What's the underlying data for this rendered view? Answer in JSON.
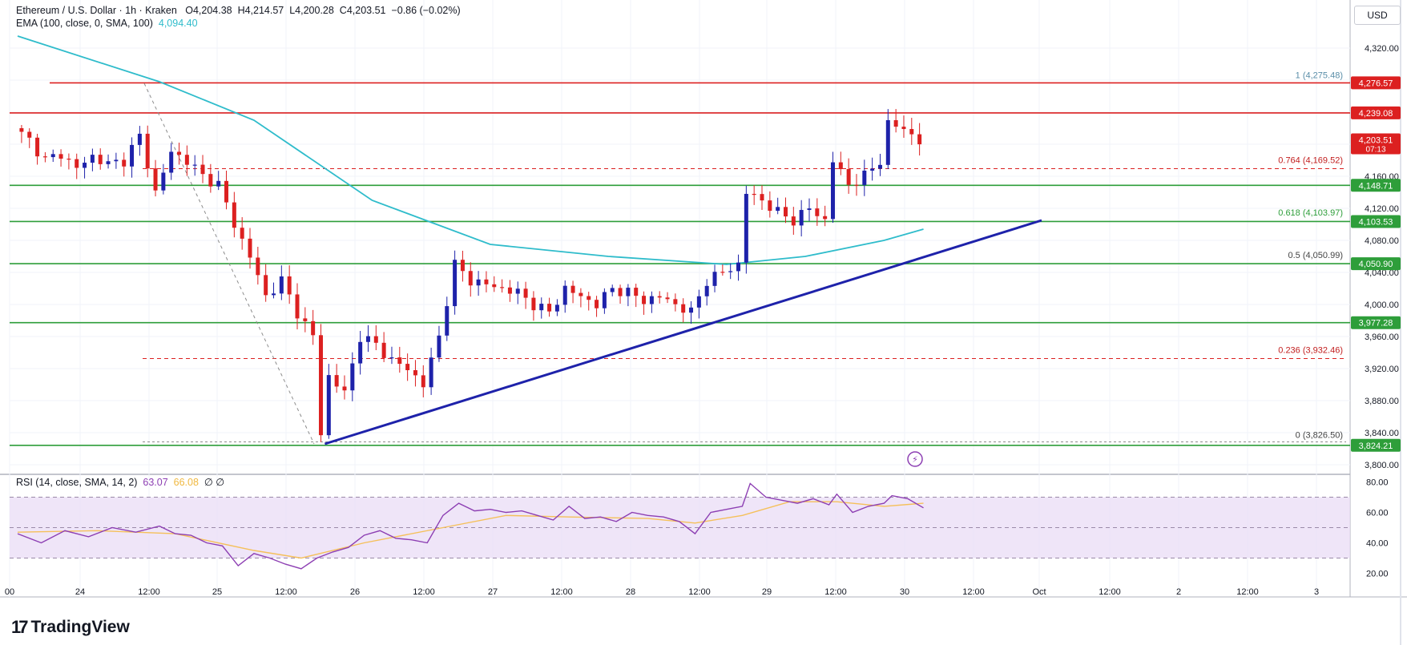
{
  "header": {
    "symbol": "Ethereum / U.S. Dollar · 1h · Kraken",
    "open_label": "O",
    "open": "4,204.38",
    "high_label": "H",
    "high": "4,214.57",
    "low_label": "L",
    "low": "4,200.28",
    "close_label": "C",
    "close": "4,203.51",
    "change": "−0.86 (−0.02%)",
    "ema_label": "EMA (100, close, 0, SMA, 100)",
    "ema_value": "4,094.40"
  },
  "currency_button": "USD",
  "brand": "TradingView",
  "colors": {
    "bull": "#1e22aa",
    "bear": "#dc2020",
    "ema": "#2fbccb",
    "support": "#2e9e3a",
    "resistance": "#dc2020",
    "trendline": "#1e22aa",
    "rsi": "#8d3fb3",
    "rsi_ma": "#f5c05a",
    "rsi_band": "#e9dcf6",
    "fib": "#5a8ea8"
  },
  "chart_data": [
    {
      "type": "candlestick",
      "price_axis": {
        "ylim": [
          3790,
          4350
        ],
        "ticks": [
          "4,320.00",
          "4,280.00",
          "4,240.00",
          "4,200.00",
          "4,160.00",
          "4,120.00",
          "4,080.00",
          "4,040.00",
          "4,000.00",
          "3,960.00",
          "3,920.00",
          "3,880.00",
          "3,840.00",
          "3,800.00"
        ]
      },
      "time_axis": {
        "labels": [
          "00",
          "24",
          "12:00",
          "25",
          "12:00",
          "26",
          "12:00",
          "27",
          "12:00",
          "28",
          "12:00",
          "29",
          "12:00",
          "30",
          "12:00",
          "Oct",
          "12:00",
          "2",
          "12:00",
          "3"
        ]
      },
      "ohlc_path": [
        [
          0,
          4220
        ],
        [
          2,
          4205
        ],
        [
          4,
          4180
        ],
        [
          6,
          4188
        ],
        [
          8,
          4170
        ],
        [
          10,
          4185
        ],
        [
          12,
          4175
        ],
        [
          14,
          4180
        ],
        [
          16,
          4210
        ],
        [
          18,
          4140
        ],
        [
          20,
          4190
        ],
        [
          22,
          4180
        ],
        [
          24,
          4160
        ],
        [
          26,
          4150
        ],
        [
          28,
          4100
        ],
        [
          30,
          4060
        ],
        [
          32,
          4010
        ],
        [
          34,
          4030
        ],
        [
          36,
          3990
        ],
        [
          38,
          3960
        ],
        [
          39,
          3840
        ],
        [
          40,
          3910
        ],
        [
          42,
          3890
        ],
        [
          44,
          3960
        ],
        [
          46,
          3950
        ],
        [
          48,
          3930
        ],
        [
          50,
          3920
        ],
        [
          52,
          3900
        ],
        [
          54,
          3960
        ],
        [
          56,
          4050
        ],
        [
          58,
          4030
        ],
        [
          60,
          4025
        ],
        [
          62,
          4020
        ],
        [
          64,
          4015
        ],
        [
          66,
          4000
        ],
        [
          68,
          3990
        ],
        [
          70,
          4020
        ],
        [
          72,
          4010
        ],
        [
          74,
          4000
        ],
        [
          76,
          4020
        ],
        [
          78,
          4015
        ],
        [
          80,
          4005
        ],
        [
          82,
          4010
        ],
        [
          84,
          4000
        ],
        [
          86,
          3990
        ],
        [
          88,
          4030
        ],
        [
          90,
          4040
        ],
        [
          92,
          4050
        ],
        [
          93,
          4140
        ],
        [
          95,
          4130
        ],
        [
          97,
          4115
        ],
        [
          99,
          4105
        ],
        [
          101,
          4120
        ],
        [
          103,
          4105
        ],
        [
          104,
          4180
        ],
        [
          106,
          4150
        ],
        [
          108,
          4160
        ],
        [
          110,
          4180
        ],
        [
          111,
          4225
        ],
        [
          113,
          4220
        ],
        [
          115,
          4203
        ]
      ],
      "ema100": [
        [
          0,
          4335
        ],
        [
          18,
          4278
        ],
        [
          30,
          4230
        ],
        [
          45,
          4130
        ],
        [
          60,
          4075
        ],
        [
          75,
          4060
        ],
        [
          90,
          4050
        ],
        [
          100,
          4060
        ],
        [
          110,
          4080
        ],
        [
          115,
          4094
        ]
      ],
      "current_price": "4,203.51",
      "countdown": "07:13",
      "horizontal_levels": [
        {
          "price": 4276.57,
          "label": "4,276.57",
          "kind": "resistance"
        },
        {
          "price": 4239.08,
          "label": "4,239.08",
          "kind": "resistance"
        },
        {
          "price": 4148.71,
          "label": "4,148.71",
          "kind": "support"
        },
        {
          "price": 4103.53,
          "label": "4,103.53",
          "kind": "support"
        },
        {
          "price": 4050.9,
          "label": "4,050.90",
          "kind": "support"
        },
        {
          "price": 3977.28,
          "label": "3,977.28",
          "kind": "support"
        },
        {
          "price": 3824.21,
          "label": "3,824.21",
          "kind": "support"
        }
      ],
      "fibonacci": [
        {
          "level": "1",
          "price": 4275.48,
          "label": "1 (4,275.48)"
        },
        {
          "level": "0.764",
          "price": 4169.52,
          "label": "0.764 (4,169.52)"
        },
        {
          "level": "0.618",
          "price": 4103.97,
          "label": "0.618 (4,103.97)"
        },
        {
          "level": "0.5",
          "price": 4050.99,
          "label": "0.5 (4,050.99)"
        },
        {
          "level": "0.236",
          "price": 3932.46,
          "label": "0.236 (3,932.46)"
        },
        {
          "level": "0",
          "price": 3826.5,
          "label": "0 (3,826.50)"
        }
      ],
      "trendline": {
        "from": [
          39,
          3826
        ],
        "to": [
          130,
          4105
        ]
      }
    },
    {
      "type": "line",
      "title": "RSI (14, close, SMA, 14, 2)",
      "rsi_value": "63.07",
      "rsi_ma_value": "66.08",
      "empty_values": "∅ ∅",
      "ylim": [
        15,
        85
      ],
      "ticks": [
        "80.00",
        "60.00",
        "40.00",
        "20.00"
      ],
      "band": [
        30,
        70
      ],
      "rsi": [
        [
          0,
          46
        ],
        [
          3,
          40
        ],
        [
          6,
          48
        ],
        [
          9,
          44
        ],
        [
          12,
          50
        ],
        [
          15,
          47
        ],
        [
          18,
          51
        ],
        [
          20,
          46
        ],
        [
          22,
          45
        ],
        [
          24,
          40
        ],
        [
          26,
          38
        ],
        [
          28,
          25
        ],
        [
          30,
          33
        ],
        [
          32,
          30
        ],
        [
          34,
          26
        ],
        [
          36,
          23
        ],
        [
          38,
          30
        ],
        [
          40,
          34
        ],
        [
          42,
          37
        ],
        [
          44,
          45
        ],
        [
          46,
          48
        ],
        [
          48,
          43
        ],
        [
          50,
          42
        ],
        [
          52,
          40
        ],
        [
          54,
          58
        ],
        [
          56,
          66
        ],
        [
          58,
          61
        ],
        [
          60,
          62
        ],
        [
          62,
          60
        ],
        [
          64,
          61
        ],
        [
          66,
          58
        ],
        [
          68,
          55
        ],
        [
          70,
          64
        ],
        [
          72,
          56
        ],
        [
          74,
          57
        ],
        [
          76,
          54
        ],
        [
          78,
          60
        ],
        [
          80,
          58
        ],
        [
          82,
          57
        ],
        [
          84,
          54
        ],
        [
          86,
          46
        ],
        [
          88,
          60
        ],
        [
          90,
          62
        ],
        [
          92,
          64
        ],
        [
          93,
          79
        ],
        [
          95,
          70
        ],
        [
          97,
          68
        ],
        [
          99,
          66
        ],
        [
          101,
          69
        ],
        [
          103,
          65
        ],
        [
          104,
          72
        ],
        [
          106,
          60
        ],
        [
          108,
          64
        ],
        [
          110,
          66
        ],
        [
          111,
          71
        ],
        [
          113,
          69
        ],
        [
          115,
          63
        ]
      ],
      "rsi_ma": [
        [
          0,
          47
        ],
        [
          10,
          48
        ],
        [
          20,
          46
        ],
        [
          30,
          35
        ],
        [
          36,
          30
        ],
        [
          44,
          40
        ],
        [
          54,
          50
        ],
        [
          62,
          58
        ],
        [
          70,
          57
        ],
        [
          80,
          56
        ],
        [
          86,
          53
        ],
        [
          92,
          58
        ],
        [
          98,
          67
        ],
        [
          104,
          67
        ],
        [
          110,
          64
        ],
        [
          115,
          66
        ]
      ]
    }
  ]
}
